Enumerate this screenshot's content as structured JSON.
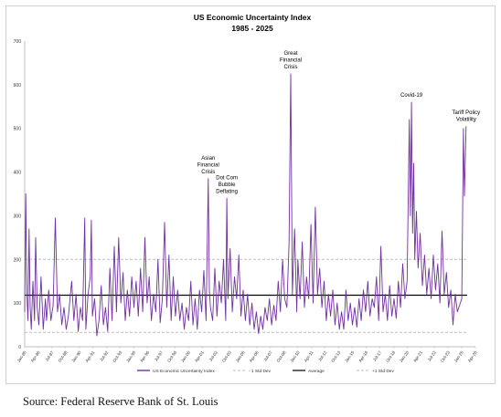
{
  "source_text": "Source: Federal Reserve Bank of St. Louis",
  "colors": {
    "series": "#7030a0",
    "average": "#000000",
    "band": "#bdbdbd",
    "frame": "#cfcfcf"
  },
  "chart_data": {
    "type": "line",
    "title": "US Economic Uncertainty Index",
    "subtitle": "1985 - 2025",
    "xlabel": "",
    "ylabel": "",
    "ylim": [
      0,
      700
    ],
    "yticks": [
      0,
      100,
      200,
      300,
      400,
      500,
      600,
      700
    ],
    "xlim": [
      1985.0,
      2026.25
    ],
    "x_tick_labels": [
      "Jan-85",
      "Apr-86",
      "Jul-87",
      "Oct-88",
      "Jan-90",
      "Apr-91",
      "Jul-92",
      "Oct-93",
      "Jan-95",
      "Apr-96",
      "Jul-97",
      "Oct-98",
      "Jan-00",
      "Apr-01",
      "Jul-02",
      "Oct-03",
      "Jan-05",
      "Apr-06",
      "Jul-07",
      "Oct-08",
      "Jan-10",
      "Apr-11",
      "Jul-12",
      "Oct-13",
      "Jan-15",
      "Apr-16",
      "Jul-17",
      "Oct-18",
      "Jan-20",
      "Apr-21",
      "Jul-22",
      "Oct-23",
      "Jan-25",
      "Apr-26"
    ],
    "grid": false,
    "legend_position": "bottom",
    "series": [
      {
        "name": "US Economic Uncertainty Index",
        "style": "solid",
        "points": [
          [
            1985.0,
            80
          ],
          [
            1985.1,
            350
          ],
          [
            1985.2,
            120
          ],
          [
            1985.3,
            60
          ],
          [
            1985.4,
            270
          ],
          [
            1985.5,
            90
          ],
          [
            1985.6,
            40
          ],
          [
            1985.75,
            150
          ],
          [
            1985.9,
            60
          ],
          [
            1986.0,
            250
          ],
          [
            1986.15,
            90
          ],
          [
            1986.3,
            50
          ],
          [
            1986.5,
            160
          ],
          [
            1986.7,
            40
          ],
          [
            1986.9,
            110
          ],
          [
            1987.0,
            60
          ],
          [
            1987.2,
            130
          ],
          [
            1987.4,
            60
          ],
          [
            1987.6,
            95
          ],
          [
            1987.8,
            295
          ],
          [
            1988.0,
            80
          ],
          [
            1988.2,
            120
          ],
          [
            1988.4,
            50
          ],
          [
            1988.6,
            90
          ],
          [
            1988.8,
            40
          ],
          [
            1989.0,
            70
          ],
          [
            1989.3,
            150
          ],
          [
            1989.5,
            60
          ],
          [
            1989.7,
            120
          ],
          [
            1989.9,
            35
          ],
          [
            1990.1,
            90
          ],
          [
            1990.3,
            60
          ],
          [
            1990.5,
            295
          ],
          [
            1990.6,
            40
          ],
          [
            1990.8,
            120
          ],
          [
            1991.0,
            160
          ],
          [
            1991.1,
            290
          ],
          [
            1991.2,
            70
          ],
          [
            1991.4,
            110
          ],
          [
            1991.6,
            25
          ],
          [
            1991.8,
            60
          ],
          [
            1992.0,
            140
          ],
          [
            1992.2,
            50
          ],
          [
            1992.4,
            90
          ],
          [
            1992.6,
            35
          ],
          [
            1992.8,
            180
          ],
          [
            1993.0,
            60
          ],
          [
            1993.2,
            230
          ],
          [
            1993.4,
            80
          ],
          [
            1993.6,
            250
          ],
          [
            1993.8,
            100
          ],
          [
            1994.0,
            170
          ],
          [
            1994.2,
            60
          ],
          [
            1994.4,
            130
          ],
          [
            1994.6,
            70
          ],
          [
            1994.8,
            160
          ],
          [
            1995.0,
            90
          ],
          [
            1995.2,
            150
          ],
          [
            1995.4,
            70
          ],
          [
            1995.6,
            180
          ],
          [
            1995.8,
            80
          ],
          [
            1996.0,
            250
          ],
          [
            1996.2,
            100
          ],
          [
            1996.4,
            160
          ],
          [
            1996.6,
            60
          ],
          [
            1996.8,
            120
          ],
          [
            1997.0,
            80
          ],
          [
            1997.2,
            200
          ],
          [
            1997.4,
            55
          ],
          [
            1997.6,
            110
          ],
          [
            1997.8,
            285
          ],
          [
            1998.0,
            90
          ],
          [
            1998.2,
            210
          ],
          [
            1998.4,
            60
          ],
          [
            1998.6,
            160
          ],
          [
            1998.8,
            70
          ],
          [
            1999.0,
            130
          ],
          [
            1999.2,
            60
          ],
          [
            1999.4,
            100
          ],
          [
            1999.6,
            40
          ],
          [
            1999.8,
            90
          ],
          [
            2000.0,
            60
          ],
          [
            2000.2,
            150
          ],
          [
            2000.4,
            50
          ],
          [
            2000.6,
            110
          ],
          [
            2000.8,
            40
          ],
          [
            2001.0,
            130
          ],
          [
            2001.2,
            80
          ],
          [
            2001.4,
            175
          ],
          [
            2001.6,
            60
          ],
          [
            2001.8,
            385
          ],
          [
            2001.9,
            130
          ],
          [
            2002.0,
            90
          ],
          [
            2002.2,
            60
          ],
          [
            2002.4,
            180
          ],
          [
            2002.6,
            70
          ],
          [
            2002.8,
            150
          ],
          [
            2003.0,
            100
          ],
          [
            2003.2,
            200
          ],
          [
            2003.4,
            60
          ],
          [
            2003.5,
            340
          ],
          [
            2003.6,
            110
          ],
          [
            2003.8,
            225
          ],
          [
            2004.0,
            80
          ],
          [
            2004.2,
            160
          ],
          [
            2004.4,
            110
          ],
          [
            2004.6,
            210
          ],
          [
            2004.8,
            70
          ],
          [
            2005.0,
            130
          ],
          [
            2005.2,
            60
          ],
          [
            2005.4,
            120
          ],
          [
            2005.6,
            50
          ],
          [
            2005.8,
            100
          ],
          [
            2006.0,
            40
          ],
          [
            2006.2,
            80
          ],
          [
            2006.4,
            30
          ],
          [
            2006.6,
            70
          ],
          [
            2006.8,
            40
          ],
          [
            2007.0,
            90
          ],
          [
            2007.2,
            60
          ],
          [
            2007.4,
            110
          ],
          [
            2007.6,
            50
          ],
          [
            2007.8,
            95
          ],
          [
            2008.0,
            60
          ],
          [
            2008.2,
            150
          ],
          [
            2008.4,
            80
          ],
          [
            2008.6,
            200
          ],
          [
            2008.8,
            110
          ],
          [
            2009.0,
            90
          ],
          [
            2009.2,
            240
          ],
          [
            2009.35,
            625
          ],
          [
            2009.5,
            120
          ],
          [
            2009.7,
            270
          ],
          [
            2009.9,
            80
          ],
          [
            2010.0,
            200
          ],
          [
            2010.2,
            110
          ],
          [
            2010.4,
            240
          ],
          [
            2010.6,
            90
          ],
          [
            2010.8,
            160
          ],
          [
            2011.0,
            110
          ],
          [
            2011.2,
            280
          ],
          [
            2011.4,
            100
          ],
          [
            2011.6,
            320
          ],
          [
            2011.8,
            120
          ],
          [
            2012.0,
            180
          ],
          [
            2012.2,
            90
          ],
          [
            2012.4,
            150
          ],
          [
            2012.6,
            60
          ],
          [
            2012.8,
            120
          ],
          [
            2013.0,
            70
          ],
          [
            2013.2,
            130
          ],
          [
            2013.4,
            50
          ],
          [
            2013.6,
            100
          ],
          [
            2013.8,
            40
          ],
          [
            2014.0,
            80
          ],
          [
            2014.2,
            40
          ],
          [
            2014.4,
            130
          ],
          [
            2014.6,
            60
          ],
          [
            2014.8,
            100
          ],
          [
            2015.0,
            50
          ],
          [
            2015.2,
            90
          ],
          [
            2015.4,
            45
          ],
          [
            2015.6,
            110
          ],
          [
            2015.8,
            60
          ],
          [
            2016.0,
            130
          ],
          [
            2016.2,
            80
          ],
          [
            2016.4,
            150
          ],
          [
            2016.6,
            70
          ],
          [
            2016.8,
            110
          ],
          [
            2017.0,
            90
          ],
          [
            2017.2,
            160
          ],
          [
            2017.4,
            60
          ],
          [
            2017.6,
            230
          ],
          [
            2017.8,
            80
          ],
          [
            2018.0,
            120
          ],
          [
            2018.2,
            60
          ],
          [
            2018.4,
            140
          ],
          [
            2018.6,
            70
          ],
          [
            2018.8,
            110
          ],
          [
            2019.0,
            65
          ],
          [
            2019.2,
            150
          ],
          [
            2019.4,
            90
          ],
          [
            2019.6,
            190
          ],
          [
            2019.8,
            110
          ],
          [
            2020.0,
            150
          ],
          [
            2020.2,
            520
          ],
          [
            2020.3,
            300
          ],
          [
            2020.4,
            560
          ],
          [
            2020.5,
            260
          ],
          [
            2020.6,
            420
          ],
          [
            2020.7,
            200
          ],
          [
            2020.85,
            310
          ],
          [
            2021.0,
            180
          ],
          [
            2021.2,
            260
          ],
          [
            2021.4,
            140
          ],
          [
            2021.6,
            210
          ],
          [
            2021.8,
            120
          ],
          [
            2022.0,
            180
          ],
          [
            2022.2,
            110
          ],
          [
            2022.4,
            210
          ],
          [
            2022.6,
            130
          ],
          [
            2022.8,
            190
          ],
          [
            2023.0,
            100
          ],
          [
            2023.2,
            265
          ],
          [
            2023.4,
            120
          ],
          [
            2023.6,
            170
          ],
          [
            2023.8,
            90
          ],
          [
            2024.0,
            130
          ],
          [
            2024.2,
            50
          ],
          [
            2024.4,
            120
          ],
          [
            2024.6,
            80
          ],
          [
            2024.8,
            95
          ],
          [
            2025.0,
            110
          ],
          [
            2025.15,
            500
          ],
          [
            2025.25,
            345
          ],
          [
            2025.4,
            505
          ]
        ]
      },
      {
        "name": "- 1 Std Dev",
        "style": "dashed",
        "constant": 33
      },
      {
        "name": "Average",
        "style": "solid",
        "constant": 118
      },
      {
        "name": "+1 Std Dev",
        "style": "dashed",
        "constant": 200
      }
    ],
    "annotations": [
      {
        "text": "Asian\nFinancial\nCrisis",
        "x": 2001.8,
        "y": 385
      },
      {
        "text": "Dot Com\nBubble\nDeflating",
        "x": 2003.5,
        "y": 340
      },
      {
        "text": "Great\nFinancial\nCrisis",
        "x": 2009.35,
        "y": 625
      },
      {
        "text": "Covid-19",
        "x": 2020.4,
        "y": 560
      },
      {
        "text": "Tariff Policy\nVolatility",
        "x": 2025.4,
        "y": 505
      }
    ]
  }
}
